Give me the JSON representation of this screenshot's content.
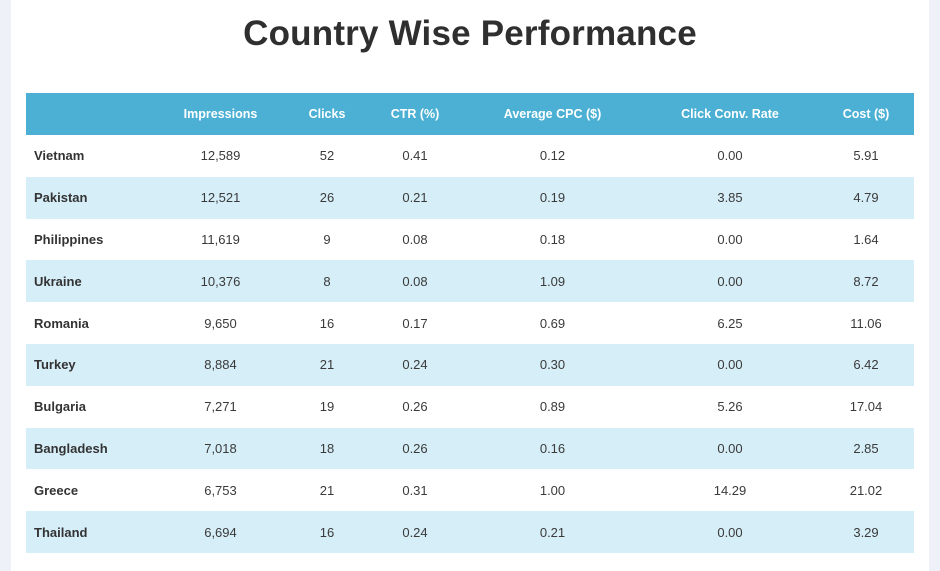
{
  "title": "Country Wise Performance",
  "table": {
    "headers": [
      "",
      "Impressions",
      "Clicks",
      "CTR (%)",
      "Average CPC ($)",
      "Click Conv. Rate",
      "Cost ($)"
    ],
    "rows": [
      [
        "Vietnam",
        "12,589",
        "52",
        "0.41",
        "0.12",
        "0.00",
        "5.91"
      ],
      [
        "Pakistan",
        "12,521",
        "26",
        "0.21",
        "0.19",
        "3.85",
        "4.79"
      ],
      [
        "Philippines",
        "11,619",
        "9",
        "0.08",
        "0.18",
        "0.00",
        "1.64"
      ],
      [
        "Ukraine",
        "10,376",
        "8",
        "0.08",
        "1.09",
        "0.00",
        "8.72"
      ],
      [
        "Romania",
        "9,650",
        "16",
        "0.17",
        "0.69",
        "6.25",
        "11.06"
      ],
      [
        "Turkey",
        "8,884",
        "21",
        "0.24",
        "0.30",
        "0.00",
        "6.42"
      ],
      [
        "Bulgaria",
        "7,271",
        "19",
        "0.26",
        "0.89",
        "5.26",
        "17.04"
      ],
      [
        "Bangladesh",
        "7,018",
        "18",
        "0.26",
        "0.16",
        "0.00",
        "2.85"
      ],
      [
        "Greece",
        "6,753",
        "21",
        "0.31",
        "1.00",
        "14.29",
        "21.02"
      ],
      [
        "Thailand",
        "6,694",
        "16",
        "0.24",
        "0.21",
        "0.00",
        "3.29"
      ]
    ]
  },
  "colors": {
    "header_bg": "#4bb0d3",
    "stripe_bg": "#d6eef8",
    "page_bg": "#eef1f7"
  }
}
